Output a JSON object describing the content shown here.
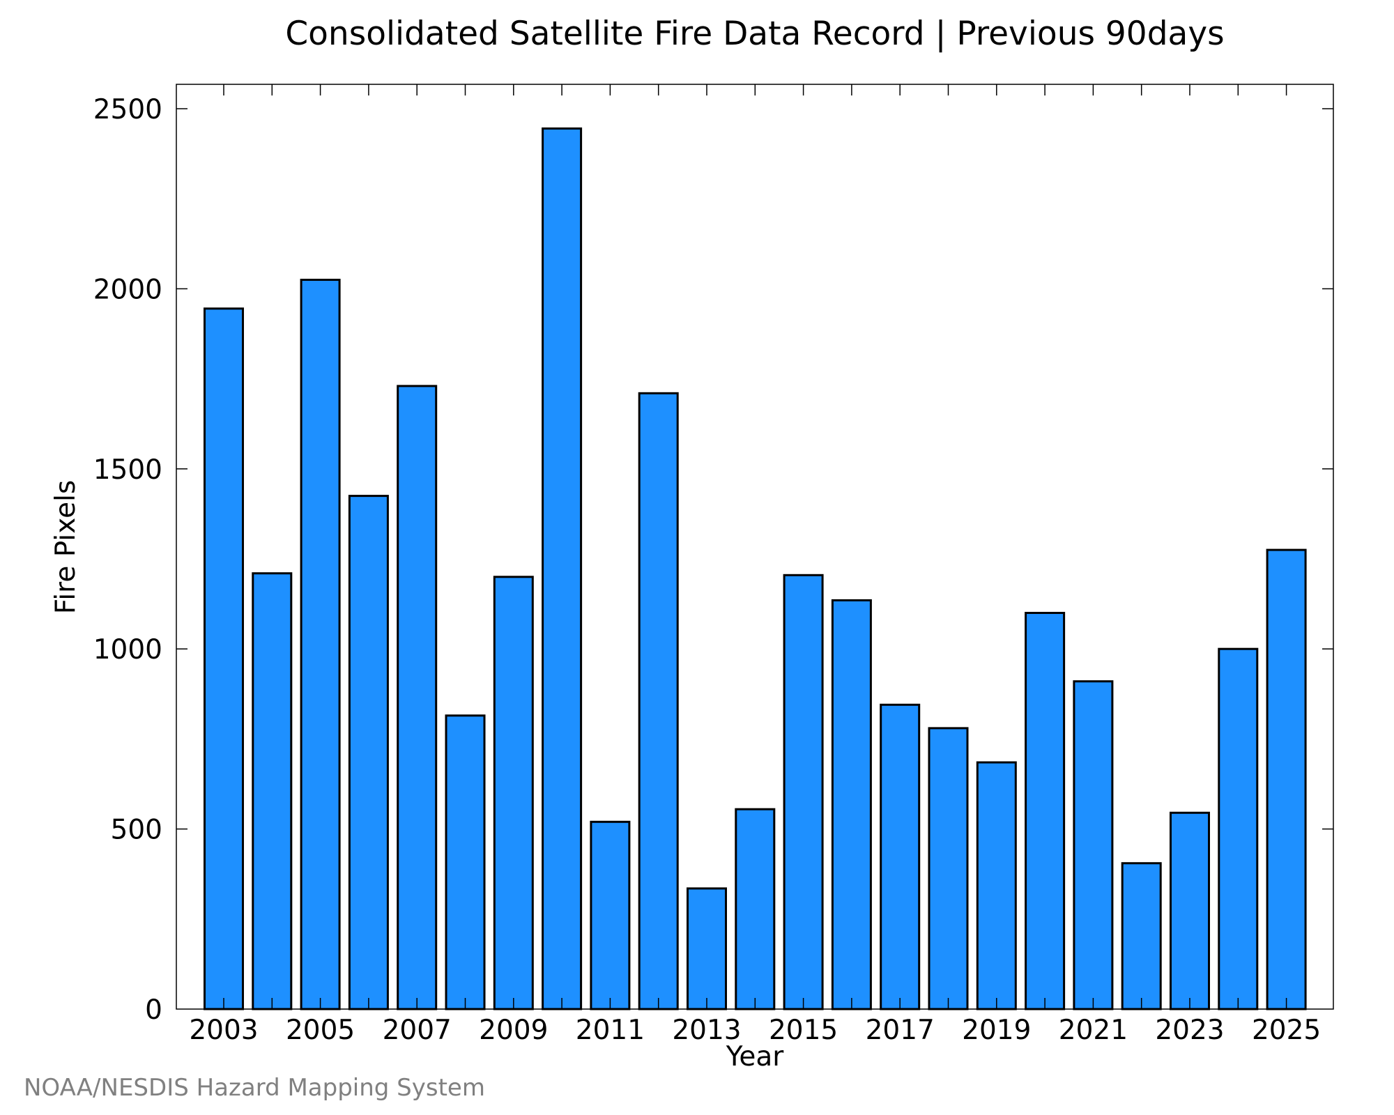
{
  "chart_data": {
    "type": "bar",
    "title": "Consolidated Satellite Fire Data Record | Previous 90days",
    "xlabel": "Year",
    "ylabel": "Fire Pixels",
    "categories": [
      "2003",
      "2004",
      "2005",
      "2006",
      "2007",
      "2008",
      "2009",
      "2010",
      "2011",
      "2012",
      "2013",
      "2014",
      "2015",
      "2016",
      "2017",
      "2018",
      "2019",
      "2020",
      "2021",
      "2022",
      "2023",
      "2024",
      "2025"
    ],
    "x_tick_labels": [
      "2003",
      "2005",
      "2007",
      "2009",
      "2011",
      "2013",
      "2015",
      "2017",
      "2019",
      "2021",
      "2023",
      "2025"
    ],
    "values": [
      1945,
      1210,
      2025,
      1425,
      1730,
      815,
      1200,
      2445,
      520,
      1710,
      335,
      555,
      1205,
      1135,
      845,
      780,
      685,
      1100,
      910,
      405,
      545,
      1000,
      1275
    ],
    "ylim": [
      0,
      2560
    ],
    "y_ticks": [
      0,
      500,
      1000,
      1500,
      2000,
      2500
    ],
    "grid": false,
    "legend": "none",
    "bar_color": "#1e90ff",
    "bar_edge_color": "#000000"
  },
  "credit": "NOAA/NESDIS Hazard Mapping System"
}
